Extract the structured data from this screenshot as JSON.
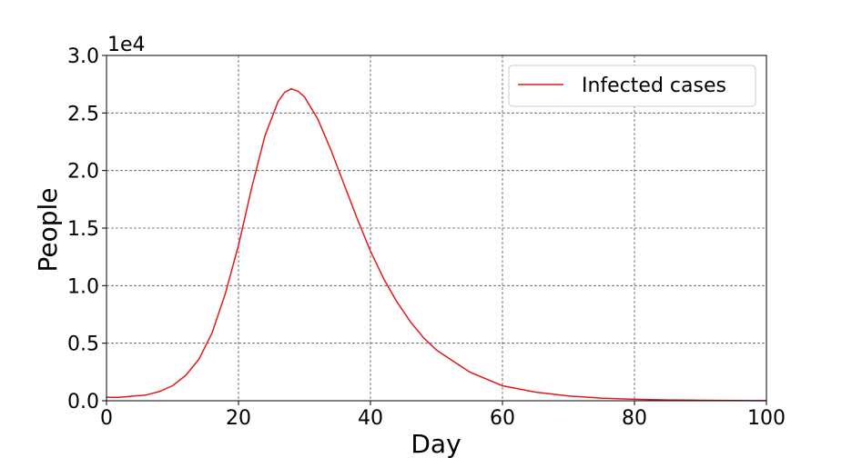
{
  "chart_data": {
    "type": "line",
    "title": "",
    "xlabel": "Day",
    "ylabel": "People",
    "y_offset_text": "1e4",
    "xlim": [
      0,
      100
    ],
    "ylim": [
      0,
      30000
    ],
    "x_ticks": [
      0,
      20,
      40,
      60,
      80,
      100
    ],
    "x_tick_labels": [
      "0",
      "20",
      "40",
      "60",
      "80",
      "100"
    ],
    "y_ticks": [
      0,
      5000,
      10000,
      15000,
      20000,
      25000,
      30000
    ],
    "y_tick_labels": [
      "0.0",
      "0.5",
      "1.0",
      "1.5",
      "2.0",
      "2.5",
      "3.0"
    ],
    "grid": true,
    "legend_position": "top-right",
    "series": [
      {
        "name": "Infected cases",
        "color": "#e31a1c",
        "x": [
          0,
          2,
          4,
          6,
          8,
          10,
          12,
          14,
          16,
          18,
          20,
          22,
          24,
          26,
          27,
          28,
          29,
          30,
          32,
          34,
          36,
          38,
          40,
          42,
          44,
          46,
          48,
          50,
          55,
          60,
          65,
          70,
          75,
          80,
          85,
          90,
          95,
          100
        ],
        "y": [
          300,
          300,
          400,
          500,
          800,
          1300,
          2200,
          3600,
          5900,
          9300,
          13500,
          18500,
          23000,
          26000,
          26800,
          27100,
          26900,
          26400,
          24500,
          21800,
          18800,
          15800,
          13000,
          10600,
          8600,
          6900,
          5500,
          4400,
          2500,
          1300,
          750,
          420,
          230,
          130,
          70,
          40,
          20,
          10
        ]
      }
    ]
  }
}
